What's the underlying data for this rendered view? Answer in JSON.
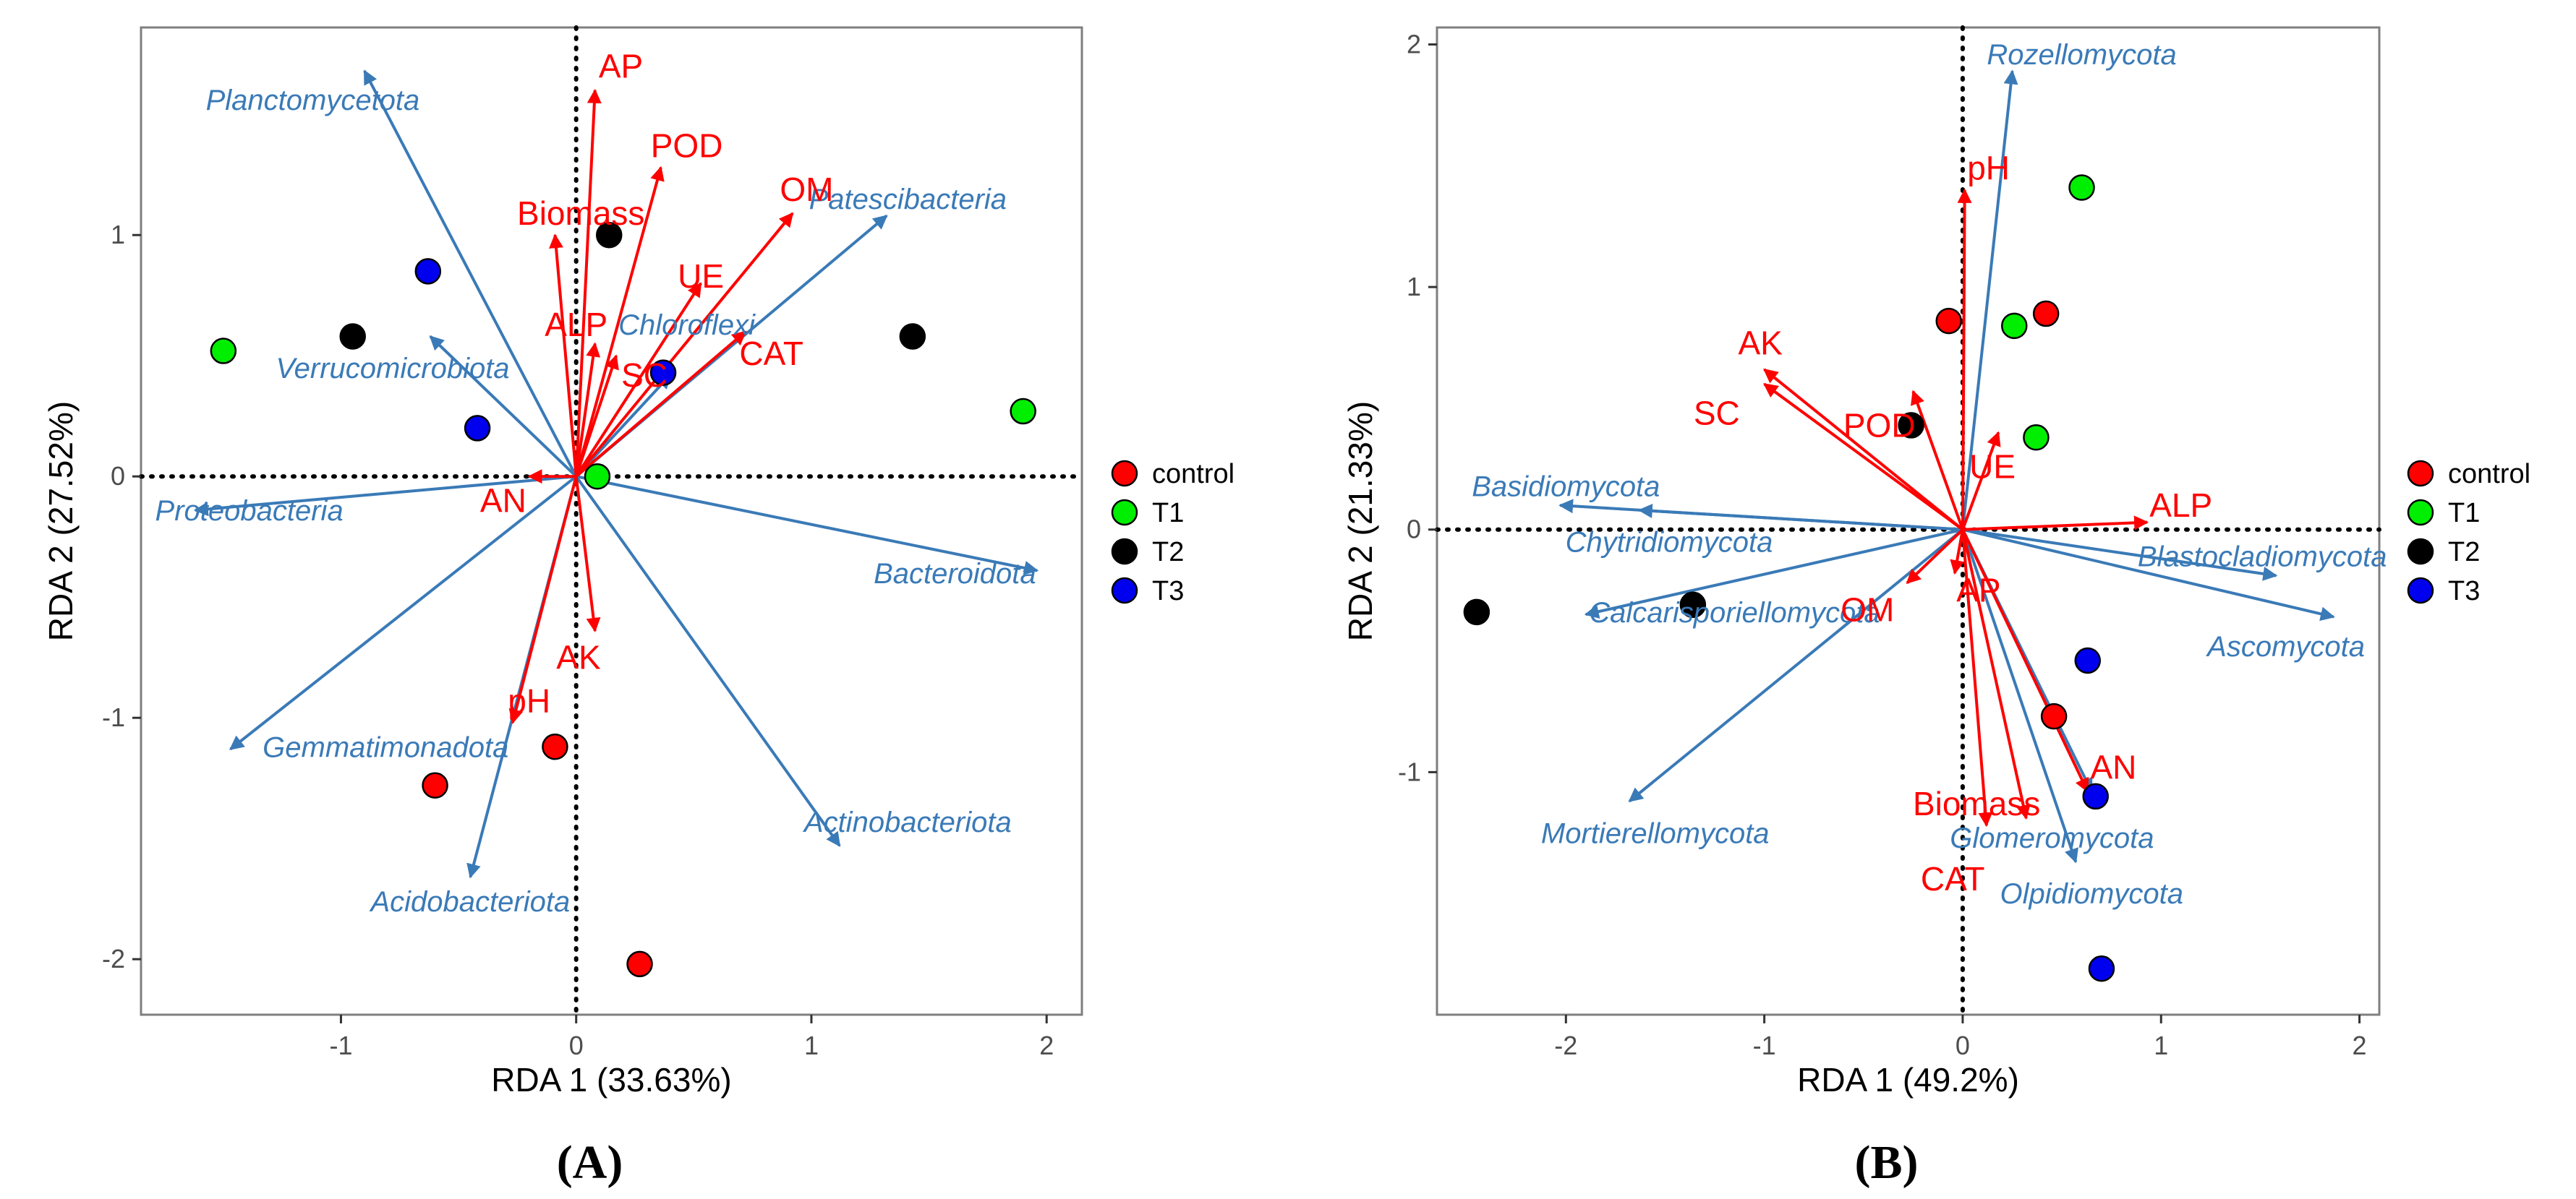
{
  "colors": {
    "species": "#3a7ab7",
    "env": "#ff0000",
    "panel_border": "#7f7f7f",
    "tick_text": "#4d4d4d",
    "axis_title": "#000000"
  },
  "legend": {
    "entries": [
      {
        "label": "control",
        "color": "#ff0000"
      },
      {
        "label": "T1",
        "color": "#00ee00"
      },
      {
        "label": "T2",
        "color": "#000000"
      },
      {
        "label": "T3",
        "color": "#0000ee"
      }
    ]
  },
  "chart_data": [
    {
      "type": "scatter",
      "panel_label": "(A)",
      "xlabel": "RDA 1 (33.63%)",
      "ylabel": "RDA 2 (27.52%)",
      "xlim": [
        -1.85,
        2.15
      ],
      "ylim": [
        -2.23,
        1.86
      ],
      "xticks": [
        -1,
        0,
        1,
        2
      ],
      "yticks": [
        -2,
        -1,
        0,
        1
      ],
      "grid": false,
      "reference_lines": "dotted lines at x=0 and y=0",
      "legend_position": "right",
      "species_arrows": [
        {
          "name": "Planctomycetota",
          "x": -0.9,
          "y": 1.68,
          "lx": -1.12,
          "ly": 1.56
        },
        {
          "name": "Patescibacteria",
          "x": 1.32,
          "y": 1.08,
          "lx": 1.41,
          "ly": 1.15
        },
        {
          "name": "Chloroflexi",
          "x": 0.4,
          "y": 0.42,
          "lx": 0.47,
          "ly": 0.63
        },
        {
          "name": "Verrucomicrobiota",
          "x": -0.62,
          "y": 0.58,
          "lx": -0.78,
          "ly": 0.45
        },
        {
          "name": "Proteobacteria",
          "x": -1.62,
          "y": -0.14,
          "lx": -1.39,
          "ly": -0.14
        },
        {
          "name": "Bacteroidota",
          "x": 1.96,
          "y": -0.39,
          "lx": 1.61,
          "ly": -0.4
        },
        {
          "name": "Gemmatimonadota",
          "x": -1.47,
          "y": -1.13,
          "lx": -0.81,
          "ly": -1.12
        },
        {
          "name": "Actinobacteriota",
          "x": 1.12,
          "y": -1.53,
          "lx": 1.41,
          "ly": -1.43
        },
        {
          "name": "Acidobacteriota",
          "x": -0.45,
          "y": -1.66,
          "lx": -0.45,
          "ly": -1.76
        }
      ],
      "env_arrows": [
        {
          "name": "AP",
          "x": 0.08,
          "y": 1.6,
          "lx": 0.19,
          "ly": 1.7
        },
        {
          "name": "POD",
          "x": 0.36,
          "y": 1.28,
          "lx": 0.47,
          "ly": 1.37
        },
        {
          "name": "OM",
          "x": 0.92,
          "y": 1.09,
          "lx": 0.98,
          "ly": 1.19
        },
        {
          "name": "Biomass",
          "x": -0.09,
          "y": 1.0,
          "lx": 0.02,
          "ly": 1.09
        },
        {
          "name": "UE",
          "x": 0.53,
          "y": 0.8,
          "lx": 0.53,
          "ly": 0.83
        },
        {
          "name": "ALP",
          "x": 0.08,
          "y": 0.55,
          "lx": 0.0,
          "ly": 0.63
        },
        {
          "name": "SC",
          "x": 0.17,
          "y": 0.5,
          "lx": 0.29,
          "ly": 0.42
        },
        {
          "name": "CAT",
          "x": 0.72,
          "y": 0.6,
          "lx": 0.83,
          "ly": 0.51
        },
        {
          "name": "AN",
          "x": -0.2,
          "y": 0.0,
          "lx": -0.31,
          "ly": -0.1
        },
        {
          "name": "AK",
          "x": 0.08,
          "y": -0.64,
          "lx": 0.01,
          "ly": -0.75
        },
        {
          "name": "pH",
          "x": -0.27,
          "y": -1.02,
          "lx": -0.2,
          "ly": -0.93
        }
      ],
      "points": [
        {
          "group": "control",
          "x": -0.09,
          "y": -1.12
        },
        {
          "group": "control",
          "x": -0.6,
          "y": -1.28
        },
        {
          "group": "control",
          "x": 0.27,
          "y": -2.02
        },
        {
          "group": "T1",
          "x": -1.5,
          "y": 0.52
        },
        {
          "group": "T1",
          "x": 1.9,
          "y": 0.27
        },
        {
          "group": "T1",
          "x": 0.09,
          "y": 0.0
        },
        {
          "group": "T2",
          "x": -0.95,
          "y": 0.58
        },
        {
          "group": "T2",
          "x": 0.14,
          "y": 1.0
        },
        {
          "group": "T2",
          "x": 1.43,
          "y": 0.58
        },
        {
          "group": "T3",
          "x": -0.63,
          "y": 0.85
        },
        {
          "group": "T3",
          "x": -0.42,
          "y": 0.2
        },
        {
          "group": "T3",
          "x": 0.37,
          "y": 0.43
        }
      ]
    },
    {
      "type": "scatter",
      "panel_label": "(B)",
      "xlabel": "RDA 1 (49.2%)",
      "ylabel": "RDA 2 (21.33%)",
      "xlim": [
        -2.65,
        2.1
      ],
      "ylim": [
        -2.0,
        2.07
      ],
      "xticks": [
        -2,
        -1,
        0,
        1,
        2
      ],
      "yticks": [
        -1,
        0,
        1,
        2
      ],
      "grid": false,
      "reference_lines": "dotted lines at x=0 and y=0",
      "legend_position": "right",
      "species_arrows": [
        {
          "name": "Rozellomycota",
          "x": 0.25,
          "y": 1.89,
          "lx": 0.6,
          "ly": 1.96
        },
        {
          "name": "Basidiomycota",
          "x": -2.03,
          "y": 0.1,
          "lx": -2.0,
          "ly": 0.18
        },
        {
          "name": "Chytridiomycota",
          "x": -1.63,
          "y": 0.08,
          "lx": -1.48,
          "ly": -0.05
        },
        {
          "name": "Calcarisporiellomycota",
          "x": -1.9,
          "y": -0.35,
          "lx": -1.15,
          "ly": -0.34
        },
        {
          "name": "Mortierellomycota",
          "x": -1.68,
          "y": -1.12,
          "lx": -1.55,
          "ly": -1.25
        },
        {
          "name": "Blastocladiomycota",
          "x": 1.58,
          "y": -0.19,
          "lx": 1.51,
          "ly": -0.11
        },
        {
          "name": "Ascomycota",
          "x": 1.87,
          "y": -0.36,
          "lx": 1.63,
          "ly": -0.48
        },
        {
          "name": "Glomeromycota",
          "x": 0.65,
          "y": -1.08,
          "lx": 0.45,
          "ly": -1.27
        },
        {
          "name": "Olpidiomycota",
          "x": 0.57,
          "y": -1.37,
          "lx": 0.65,
          "ly": -1.5
        }
      ],
      "env_arrows": [
        {
          "name": "pH",
          "x": 0.01,
          "y": 1.4,
          "lx": 0.13,
          "ly": 1.49
        },
        {
          "name": "AK",
          "x": -1.0,
          "y": 0.66,
          "lx": -1.02,
          "ly": 0.77
        },
        {
          "name": "SC",
          "x": -1.0,
          "y": 0.6,
          "lx": -1.24,
          "ly": 0.48
        },
        {
          "name": "POD",
          "x": -0.25,
          "y": 0.57,
          "lx": -0.42,
          "ly": 0.43
        },
        {
          "name": "UE",
          "x": 0.18,
          "y": 0.4,
          "lx": 0.15,
          "ly": 0.26
        },
        {
          "name": "ALP",
          "x": 0.93,
          "y": 0.03,
          "lx": 1.1,
          "ly": 0.1
        },
        {
          "name": "OM",
          "x": -0.28,
          "y": -0.22,
          "lx": -0.48,
          "ly": -0.33
        },
        {
          "name": "AP",
          "x": -0.04,
          "y": -0.18,
          "lx": 0.08,
          "ly": -0.25
        },
        {
          "name": "Biomass",
          "x": 0.12,
          "y": -1.22,
          "lx": 0.07,
          "ly": -1.13
        },
        {
          "name": "CAT",
          "x": 0.32,
          "y": -1.19,
          "lx": -0.05,
          "ly": -1.44
        },
        {
          "name": "AN",
          "x": 0.63,
          "y": -1.08,
          "lx": 0.76,
          "ly": -0.98
        }
      ],
      "points": [
        {
          "group": "control",
          "x": -0.07,
          "y": 0.86
        },
        {
          "group": "control",
          "x": 0.42,
          "y": 0.89
        },
        {
          "group": "control",
          "x": 0.46,
          "y": -0.77
        },
        {
          "group": "T1",
          "x": 0.26,
          "y": 0.84
        },
        {
          "group": "T1",
          "x": 0.6,
          "y": 1.41
        },
        {
          "group": "T1",
          "x": 0.37,
          "y": 0.38
        },
        {
          "group": "T2",
          "x": -0.26,
          "y": 0.43
        },
        {
          "group": "T2",
          "x": -1.36,
          "y": -0.31
        },
        {
          "group": "T2",
          "x": -2.45,
          "y": -0.34
        },
        {
          "group": "T3",
          "x": 0.63,
          "y": -0.54
        },
        {
          "group": "T3",
          "x": 0.67,
          "y": -1.1
        },
        {
          "group": "T3",
          "x": 0.7,
          "y": -1.81
        }
      ]
    }
  ]
}
